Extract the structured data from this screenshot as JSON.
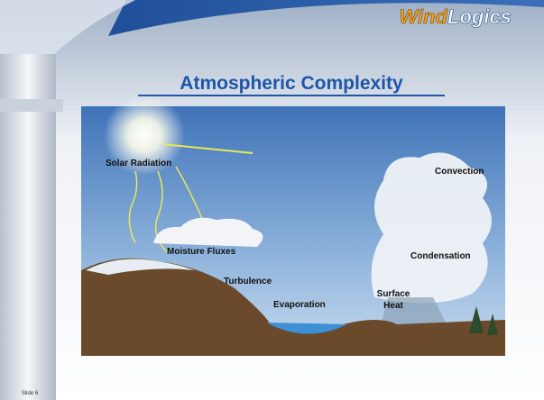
{
  "header": {
    "logo": {
      "first": "Wind",
      "second": "Logics"
    },
    "title": "Atmospheric Complexity"
  },
  "illustration": {
    "labels": [
      "Solar Radiation",
      "Convection",
      "Moisture Fluxes",
      "Condensation",
      "Turbulence",
      "Evaporation",
      [
        "Surface",
        "Heat"
      ]
    ]
  },
  "footer": {
    "slide_number": "Slide 6"
  }
}
